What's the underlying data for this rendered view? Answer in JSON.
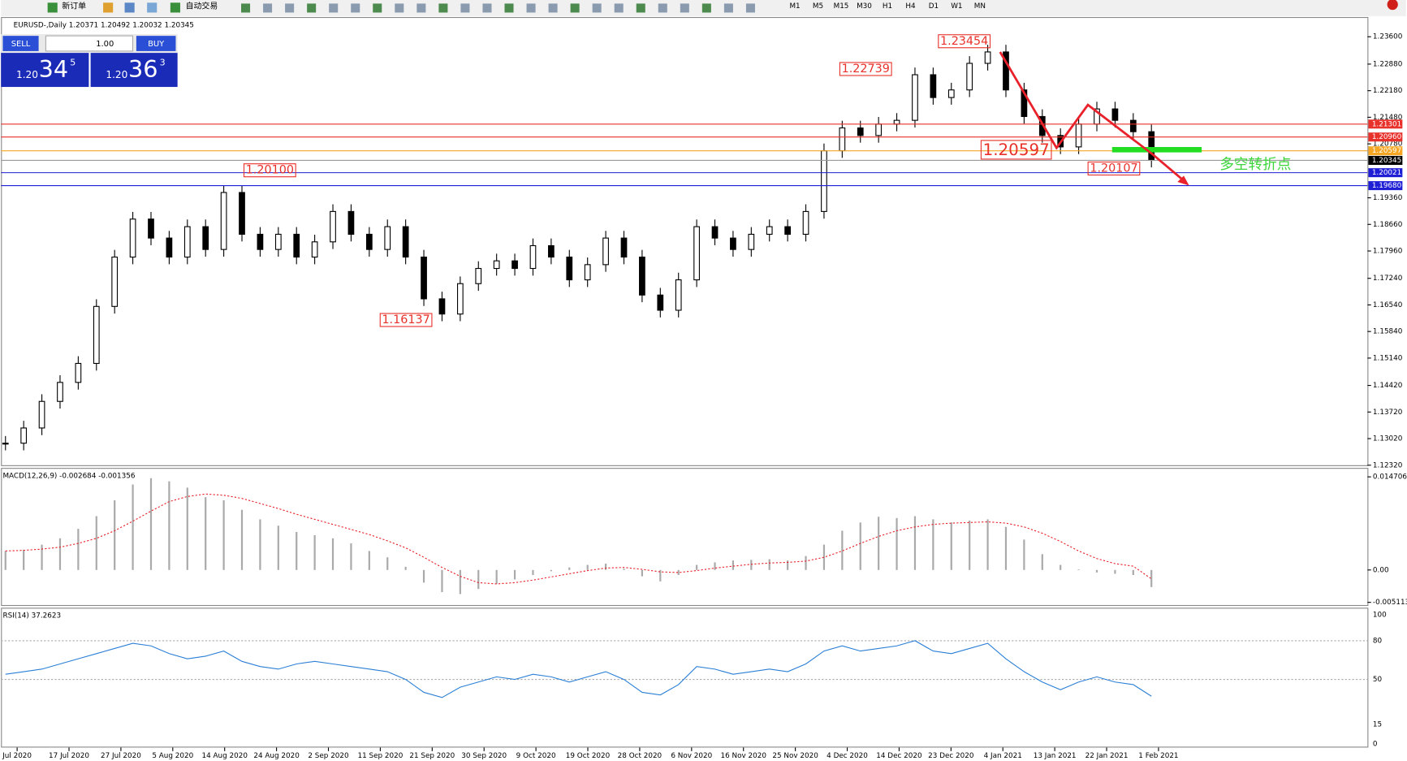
{
  "toolbar": {
    "new_order": "新订单",
    "auto_trading": "自动交易",
    "timeframes": [
      "M1",
      "M5",
      "M15",
      "M30",
      "H1",
      "H4",
      "D1",
      "W1",
      "MN"
    ]
  },
  "symbol_line": "EURUSD-,Daily  1.20371 1.20492 1.20032 1.20345",
  "trade_panel": {
    "sell": "SELL",
    "lots": "1.00",
    "buy": "BUY",
    "sell_price": {
      "prefix": "1.20",
      "big": "34",
      "sup": "5"
    },
    "buy_price": {
      "prefix": "1.20",
      "big": "36",
      "sup": "3"
    }
  },
  "price_chart": {
    "ylim": [
      1.1232,
      1.236
    ],
    "yticks": [
      {
        "value": 1.236,
        "label": "1.23600"
      },
      {
        "value": 1.2288,
        "label": "1.22880"
      },
      {
        "value": 1.2218,
        "label": "1.22180"
      },
      {
        "value": 1.2148,
        "label": "1.21480"
      },
      {
        "value": 1.2078,
        "label": "1.20780"
      },
      {
        "value": 1.1936,
        "label": "1.19360"
      },
      {
        "value": 1.1866,
        "label": "1.18660"
      },
      {
        "value": 1.1796,
        "label": "1.17960"
      },
      {
        "value": 1.1724,
        "label": "1.17240"
      },
      {
        "value": 1.1654,
        "label": "1.16540"
      },
      {
        "value": 1.1584,
        "label": "1.15840"
      },
      {
        "value": 1.1514,
        "label": "1.15140"
      },
      {
        "value": 1.1442,
        "label": "1.14420"
      },
      {
        "value": 1.1372,
        "label": "1.13720"
      },
      {
        "value": 1.1302,
        "label": "1.13020"
      },
      {
        "value": 1.1232,
        "label": "1.12320"
      }
    ],
    "levels": [
      {
        "value": 1.21301,
        "label": "1.21301",
        "color": "#e8312a"
      },
      {
        "value": 1.2096,
        "label": "1.20960",
        "color": "#e8312a"
      },
      {
        "value": 1.20597,
        "label": "1.20597",
        "color": "#f5a623"
      },
      {
        "value": 1.20345,
        "label": "1.20345",
        "color": "#000000"
      },
      {
        "value": 1.20021,
        "label": "1.20021",
        "color": "#1f1fd6"
      },
      {
        "value": 1.1968,
        "label": "1.19680",
        "color": "#1f1fd6"
      }
    ],
    "annotations": [
      "1.20100",
      "1.22739",
      "1.23454",
      "1.16137",
      "1.20597",
      "1.20107",
      "多空转折点"
    ],
    "x_labels": [
      "Jul 2020",
      "17 Jul 2020",
      "27 Jul 2020",
      "5 Aug 2020",
      "14 Aug 2020",
      "24 Aug 2020",
      "2 Sep 2020",
      "11 Sep 2020",
      "21 Sep 2020",
      "30 Sep 2020",
      "9 Oct 2020",
      "19 Oct 2020",
      "28 Oct 2020",
      "6 Nov 2020",
      "16 Nov 2020",
      "25 Nov 2020",
      "4 Dec 2020",
      "14 Dec 2020",
      "23 Dec 2020",
      "4 Jan 2021",
      "13 Jan 2021",
      "22 Jan 2021",
      "1 Feb 2021"
    ],
    "closes": [
      1.129,
      1.133,
      1.14,
      1.145,
      1.15,
      1.165,
      1.178,
      1.188,
      1.183,
      1.178,
      1.186,
      1.18,
      1.195,
      1.184,
      1.18,
      1.184,
      1.178,
      1.182,
      1.19,
      1.184,
      1.18,
      1.186,
      1.178,
      1.167,
      1.163,
      1.171,
      1.175,
      1.177,
      1.175,
      1.181,
      1.178,
      1.172,
      1.176,
      1.183,
      1.178,
      1.168,
      1.164,
      1.172,
      1.186,
      1.183,
      1.18,
      1.184,
      1.186,
      1.184,
      1.19,
      1.206,
      1.212,
      1.21,
      1.213,
      1.214,
      1.226,
      1.22,
      1.222,
      1.229,
      1.232,
      1.222,
      1.215,
      1.21,
      1.207,
      1.213,
      1.217,
      1.214,
      1.211,
      1.2035
    ]
  },
  "macd": {
    "title": "MACD(12,26,9) -0.002684 -0.001356",
    "ylim": [
      -0.005113,
      0.014706
    ],
    "yticks": [
      {
        "value": 0.014706,
        "label": "0.014706"
      },
      {
        "value": 0,
        "label": "0.00"
      },
      {
        "value": -0.005113,
        "label": "-0.005113"
      }
    ],
    "histogram": [
      0.003,
      0.0032,
      0.004,
      0.005,
      0.0065,
      0.0085,
      0.011,
      0.0135,
      0.0145,
      0.014,
      0.013,
      0.0115,
      0.011,
      0.0095,
      0.008,
      0.007,
      0.006,
      0.0055,
      0.005,
      0.0042,
      0.003,
      0.002,
      0.0005,
      -0.002,
      -0.0035,
      -0.0038,
      -0.003,
      -0.0022,
      -0.0015,
      -0.0008,
      -0.0002,
      0.0004,
      0.0008,
      0.001,
      0.0002,
      -0.001,
      -0.0018,
      -0.0008,
      0.0008,
      0.0012,
      0.0015,
      0.0016,
      0.0017,
      0.0015,
      0.0022,
      0.004,
      0.0062,
      0.0075,
      0.0084,
      0.0082,
      0.0085,
      0.008,
      0.0075,
      0.0078,
      0.008,
      0.0068,
      0.0048,
      0.0025,
      0.0008,
      0.0001,
      -0.0004,
      -0.0006,
      -0.0008,
      -0.0027
    ],
    "signal": [
      0.003,
      0.0031,
      0.0033,
      0.0036,
      0.0042,
      0.005,
      0.0062,
      0.0077,
      0.0093,
      0.0108,
      0.0116,
      0.012,
      0.0118,
      0.0113,
      0.0105,
      0.0097,
      0.0088,
      0.008,
      0.0072,
      0.0064,
      0.0056,
      0.0046,
      0.0035,
      0.002,
      0.0004,
      -0.001,
      -0.002,
      -0.0022,
      -0.002,
      -0.0016,
      -0.0011,
      -0.0006,
      -0.0001,
      0.0003,
      0.0004,
      0.0001,
      -0.0003,
      -0.0004,
      -0.0001,
      0.0003,
      0.0006,
      0.0009,
      0.0011,
      0.0012,
      0.0014,
      0.002,
      0.003,
      0.0042,
      0.0053,
      0.0062,
      0.0068,
      0.0072,
      0.0074,
      0.0075,
      0.0076,
      0.0074,
      0.0068,
      0.0058,
      0.0045,
      0.003,
      0.0018,
      0.001,
      0.0006,
      -0.0014
    ]
  },
  "rsi": {
    "title": "RSI(14) 37.2623",
    "ylim": [
      0,
      100
    ],
    "yticks": [
      100,
      80,
      50,
      15,
      0
    ],
    "levels": [
      80,
      50
    ],
    "values": [
      54,
      56,
      58,
      62,
      66,
      70,
      74,
      78,
      76,
      70,
      66,
      68,
      72,
      64,
      60,
      58,
      62,
      64,
      62,
      60,
      58,
      56,
      50,
      40,
      36,
      44,
      48,
      52,
      50,
      54,
      52,
      48,
      52,
      56,
      50,
      40,
      38,
      46,
      60,
      58,
      54,
      56,
      58,
      56,
      62,
      72,
      76,
      72,
      74,
      76,
      80,
      72,
      70,
      74,
      78,
      66,
      56,
      48,
      42,
      48,
      52,
      48,
      46,
      37
    ]
  }
}
